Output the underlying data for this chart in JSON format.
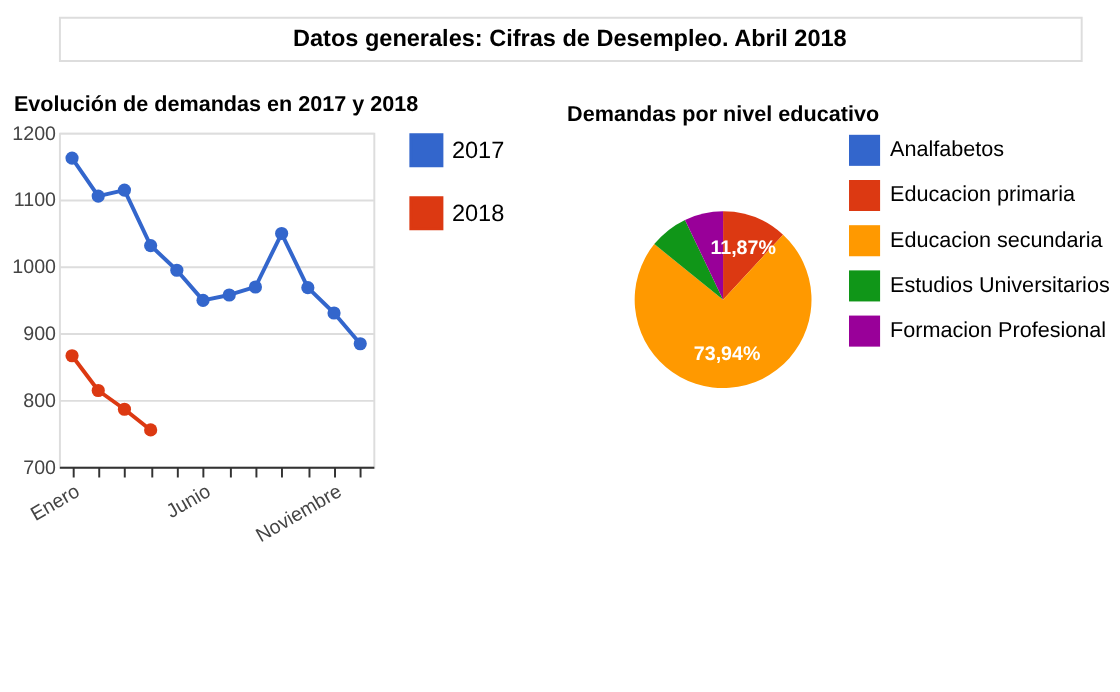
{
  "chart_data": [
    {
      "type": "other",
      "title": "Datos generales: Cifras de Desempleo. Abril 2018"
    },
    {
      "type": "line",
      "title": "Evolución de demandas en 2017 y 2018",
      "categories": [
        "Enero",
        null,
        null,
        null,
        null,
        "Junio",
        null,
        null,
        null,
        null,
        "Noviembre",
        null
      ],
      "series": [
        {
          "name": "2017",
          "color": "#3366cc",
          "values": [
            1162,
            1105,
            1114,
            1031,
            994,
            949,
            957,
            969,
            1049,
            968,
            930,
            884
          ]
        },
        {
          "name": "2018",
          "color": "#dc3912",
          "values": [
            866,
            814,
            786,
            755,
            null,
            null,
            null,
            null,
            null,
            null,
            null,
            null
          ]
        }
      ],
      "ylim": [
        700,
        1200
      ],
      "yticks": [
        700,
        800,
        900,
        1000,
        1100,
        1200
      ],
      "grid": "y",
      "legend": "right",
      "marker": "circle",
      "line_style": "solid"
    },
    {
      "type": "pie",
      "title": "Demandas por nivel educativo",
      "categories": [
        "Analfabetos",
        "Educacion primaria",
        "Educacion secundaria",
        "Estudios Universitarios",
        "Formacion Profesional"
      ],
      "values": [
        0,
        11.87,
        73.94,
        7.1,
        7.09
      ],
      "colors": [
        "#3366cc",
        "#dc3912",
        "#ff9900",
        "#109618",
        "#990099"
      ],
      "value_labels": [
        null,
        "11,87%",
        "73,94%",
        null,
        null
      ],
      "legend": "right"
    }
  ]
}
